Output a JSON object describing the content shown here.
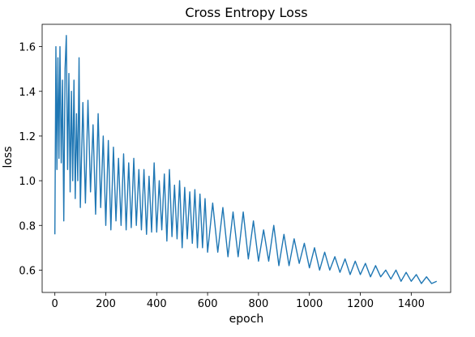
{
  "chart_data": {
    "type": "line",
    "title": "Cross Entropy Loss",
    "xlabel": "epoch",
    "ylabel": "loss",
    "xlim": [
      -50,
      1555
    ],
    "ylim": [
      0.5,
      1.7
    ],
    "xticks": [
      0,
      200,
      400,
      600,
      800,
      1000,
      1200,
      1400
    ],
    "yticks": [
      0.6,
      0.8,
      1.0,
      1.2,
      1.4,
      1.6
    ],
    "xtick_labels": [
      "0",
      "200",
      "400",
      "600",
      "800",
      "1000",
      "1200",
      "1400"
    ],
    "ytick_labels": [
      "0.6",
      "0.8",
      "1.0",
      "1.2",
      "1.4",
      "1.6"
    ],
    "grid": false,
    "series": [
      {
        "color": "#1f77b4",
        "x": [
          0,
          4,
          8,
          12,
          16,
          20,
          25,
          30,
          35,
          40,
          45,
          50,
          55,
          60,
          65,
          70,
          75,
          80,
          85,
          90,
          95,
          100,
          110,
          120,
          130,
          140,
          150,
          160,
          170,
          180,
          190,
          200,
          210,
          220,
          230,
          240,
          250,
          260,
          270,
          280,
          290,
          300,
          310,
          320,
          330,
          340,
          350,
          360,
          370,
          380,
          390,
          400,
          410,
          420,
          430,
          440,
          450,
          460,
          470,
          480,
          490,
          500,
          510,
          520,
          530,
          540,
          550,
          560,
          570,
          580,
          590,
          600,
          620,
          640,
          660,
          680,
          700,
          720,
          740,
          760,
          780,
          800,
          820,
          840,
          860,
          880,
          900,
          920,
          940,
          960,
          980,
          1000,
          1020,
          1040,
          1060,
          1080,
          1100,
          1120,
          1140,
          1160,
          1180,
          1200,
          1220,
          1240,
          1260,
          1280,
          1300,
          1320,
          1340,
          1360,
          1380,
          1400,
          1420,
          1440,
          1460,
          1480,
          1500
        ],
        "y": [
          0.76,
          1.6,
          1.05,
          1.55,
          1.1,
          1.6,
          1.08,
          1.45,
          0.82,
          1.5,
          1.65,
          1.05,
          1.48,
          0.95,
          1.4,
          1.0,
          1.45,
          0.92,
          1.3,
          1.0,
          1.55,
          0.88,
          1.35,
          0.9,
          1.36,
          0.95,
          1.25,
          0.85,
          1.3,
          0.88,
          1.2,
          0.8,
          1.18,
          0.78,
          1.15,
          0.82,
          1.1,
          0.8,
          1.12,
          0.78,
          1.08,
          0.79,
          1.1,
          0.8,
          1.05,
          0.78,
          1.05,
          0.76,
          1.02,
          0.77,
          1.08,
          0.77,
          1.0,
          0.78,
          1.03,
          0.73,
          1.05,
          0.75,
          0.98,
          0.74,
          1.0,
          0.7,
          0.97,
          0.74,
          0.95,
          0.72,
          0.96,
          0.7,
          0.94,
          0.7,
          0.92,
          0.68,
          0.9,
          0.68,
          0.88,
          0.66,
          0.86,
          0.66,
          0.86,
          0.65,
          0.82,
          0.64,
          0.78,
          0.64,
          0.8,
          0.62,
          0.76,
          0.62,
          0.74,
          0.63,
          0.72,
          0.61,
          0.7,
          0.6,
          0.68,
          0.6,
          0.66,
          0.59,
          0.65,
          0.58,
          0.64,
          0.58,
          0.63,
          0.57,
          0.62,
          0.57,
          0.6,
          0.56,
          0.6,
          0.55,
          0.59,
          0.55,
          0.58,
          0.54,
          0.57,
          0.54,
          0.55
        ],
        "band": {
          "note": "",
          "upper": [],
          "lower": []
        }
      }
    ]
  }
}
